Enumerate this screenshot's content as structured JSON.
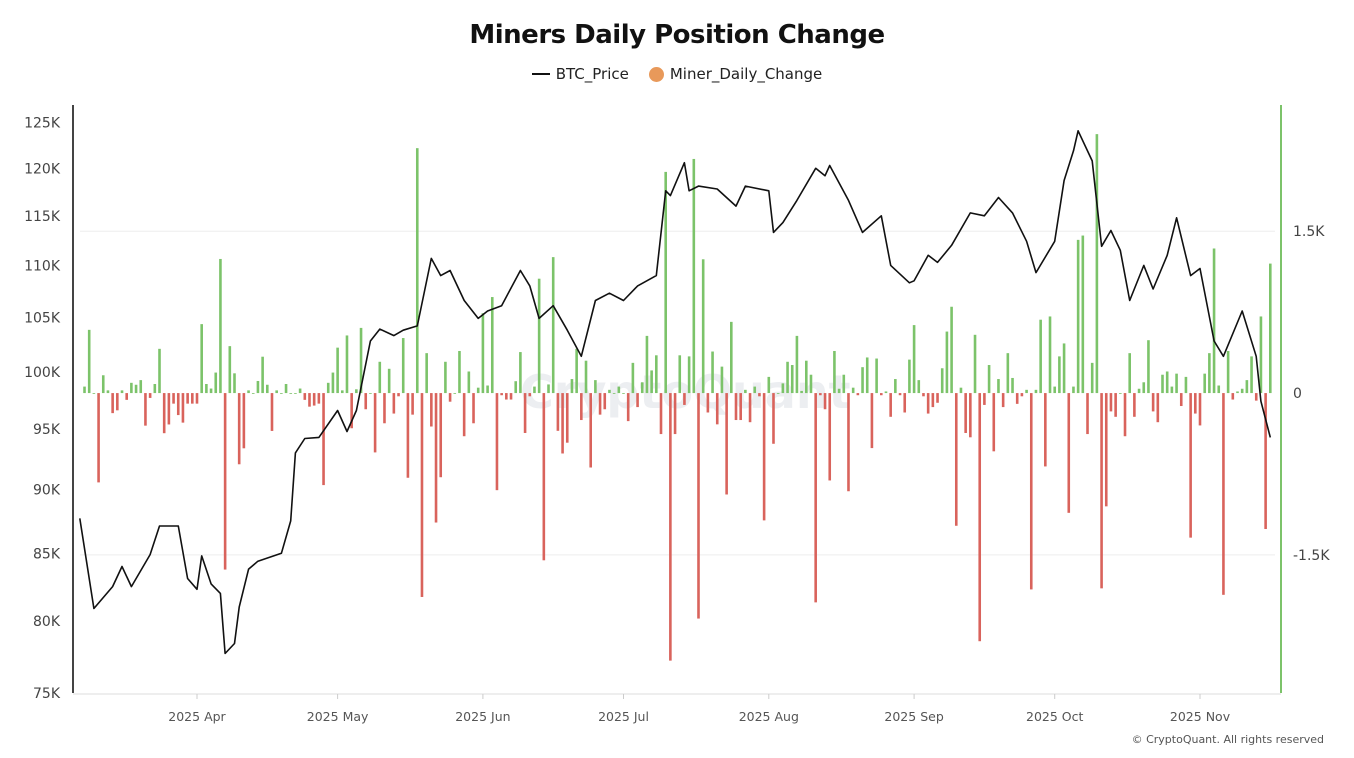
{
  "chart_data": {
    "type": "bar+line",
    "title": "Miners Daily Position Change",
    "legend": {
      "placement": "top-center",
      "entries": [
        {
          "name": "BTC_Price",
          "color": "#111111",
          "marker": "line"
        },
        {
          "name": "Miner_Daily_Change",
          "color": "#e8995a",
          "marker": "circle"
        }
      ]
    },
    "left_axis": {
      "scale": "log",
      "ylim": [
        75000,
        127000
      ],
      "ticks": [
        {
          "value": 125000,
          "label": "125K"
        },
        {
          "value": 120000,
          "label": "120K"
        },
        {
          "value": 115000,
          "label": "115K"
        },
        {
          "value": 110000,
          "label": "110K"
        },
        {
          "value": 105000,
          "label": "105K"
        },
        {
          "value": 100000,
          "label": "100K"
        },
        {
          "value": 95000,
          "label": "95K"
        },
        {
          "value": 90000,
          "label": "90K"
        },
        {
          "value": 85000,
          "label": "85K"
        },
        {
          "value": 80000,
          "label": "80K"
        },
        {
          "value": 75000,
          "label": "75K"
        }
      ]
    },
    "right_axis": {
      "scale": "linear",
      "ylim": [
        -2780,
        2670
      ],
      "ticks": [
        {
          "value": 1500,
          "label": "1.5K"
        },
        {
          "value": 0,
          "label": "0"
        },
        {
          "value": -1500,
          "label": "-1.5K"
        }
      ]
    },
    "x_axis": {
      "type": "date",
      "range": [
        "2025-03-07",
        "2025-11-16"
      ],
      "ticks": [
        {
          "date": "2025-04-01",
          "label": "2025 Apr"
        },
        {
          "date": "2025-05-01",
          "label": "2025 May"
        },
        {
          "date": "2025-06-01",
          "label": "2025 Jun"
        },
        {
          "date": "2025-07-01",
          "label": "2025 Jul"
        },
        {
          "date": "2025-08-01",
          "label": "2025 Aug"
        },
        {
          "date": "2025-09-01",
          "label": "2025 Sep"
        },
        {
          "date": "2025-10-01",
          "label": "2025 Oct"
        },
        {
          "date": "2025-11-01",
          "label": "2025 Nov"
        }
      ]
    },
    "grid": {
      "horizontal_at_right_axis": [
        1500,
        -1500
      ]
    },
    "colors": {
      "positive": "#7cc36a",
      "negative": "#d9635c",
      "price": "#111111"
    },
    "series": [
      {
        "name": "BTC_Price",
        "type": "line",
        "points": [
          [
            "2025-03-07",
            87700
          ],
          [
            "2025-03-10",
            80900
          ],
          [
            "2025-03-14",
            82500
          ],
          [
            "2025-03-16",
            84000
          ],
          [
            "2025-03-18",
            82500
          ],
          [
            "2025-03-22",
            84900
          ],
          [
            "2025-03-24",
            87100
          ],
          [
            "2025-03-28",
            87100
          ],
          [
            "2025-03-30",
            83100
          ],
          [
            "2025-04-01",
            82300
          ],
          [
            "2025-04-02",
            84800
          ],
          [
            "2025-04-04",
            82700
          ],
          [
            "2025-04-06",
            82000
          ],
          [
            "2025-04-07",
            77700
          ],
          [
            "2025-04-09",
            78400
          ],
          [
            "2025-04-10",
            81000
          ],
          [
            "2025-04-12",
            83800
          ],
          [
            "2025-04-14",
            84400
          ],
          [
            "2025-04-19",
            85000
          ],
          [
            "2025-04-21",
            87500
          ],
          [
            "2025-04-22",
            93000
          ],
          [
            "2025-04-24",
            94200
          ],
          [
            "2025-04-27",
            94300
          ],
          [
            "2025-05-01",
            96600
          ],
          [
            "2025-05-03",
            94800
          ],
          [
            "2025-05-05",
            96600
          ],
          [
            "2025-05-08",
            102800
          ],
          [
            "2025-05-10",
            103900
          ],
          [
            "2025-05-13",
            103300
          ],
          [
            "2025-05-15",
            103800
          ],
          [
            "2025-05-18",
            104200
          ],
          [
            "2025-05-21",
            110700
          ],
          [
            "2025-05-23",
            109000
          ],
          [
            "2025-05-25",
            109500
          ],
          [
            "2025-05-28",
            106600
          ],
          [
            "2025-05-31",
            104900
          ],
          [
            "2025-06-02",
            105600
          ],
          [
            "2025-06-05",
            106100
          ],
          [
            "2025-06-09",
            109500
          ],
          [
            "2025-06-11",
            108000
          ],
          [
            "2025-06-13",
            104900
          ],
          [
            "2025-06-16",
            106100
          ],
          [
            "2025-06-19",
            103800
          ],
          [
            "2025-06-22",
            101400
          ],
          [
            "2025-06-25",
            106600
          ],
          [
            "2025-06-28",
            107300
          ],
          [
            "2025-07-01",
            106600
          ],
          [
            "2025-07-04",
            108000
          ],
          [
            "2025-07-08",
            109000
          ],
          [
            "2025-07-10",
            117600
          ],
          [
            "2025-07-11",
            117100
          ],
          [
            "2025-07-14",
            120600
          ],
          [
            "2025-07-15",
            117600
          ],
          [
            "2025-07-17",
            118100
          ],
          [
            "2025-07-21",
            117800
          ],
          [
            "2025-07-25",
            116000
          ],
          [
            "2025-07-27",
            118100
          ],
          [
            "2025-08-01",
            117600
          ],
          [
            "2025-08-02",
            113300
          ],
          [
            "2025-08-04",
            114300
          ],
          [
            "2025-08-07",
            116600
          ],
          [
            "2025-08-11",
            120000
          ],
          [
            "2025-08-13",
            119200
          ],
          [
            "2025-08-14",
            120300
          ],
          [
            "2025-08-18",
            116600
          ],
          [
            "2025-08-21",
            113300
          ],
          [
            "2025-08-25",
            115000
          ],
          [
            "2025-08-27",
            110000
          ],
          [
            "2025-08-31",
            108300
          ],
          [
            "2025-09-01",
            108500
          ],
          [
            "2025-09-04",
            111000
          ],
          [
            "2025-09-06",
            110300
          ],
          [
            "2025-09-09",
            112000
          ],
          [
            "2025-09-13",
            115300
          ],
          [
            "2025-09-16",
            115000
          ],
          [
            "2025-09-19",
            116900
          ],
          [
            "2025-09-22",
            115300
          ],
          [
            "2025-09-25",
            112400
          ],
          [
            "2025-09-27",
            109300
          ],
          [
            "2025-10-01",
            112400
          ],
          [
            "2025-10-03",
            118700
          ],
          [
            "2025-10-05",
            121900
          ],
          [
            "2025-10-06",
            124100
          ],
          [
            "2025-10-09",
            120800
          ],
          [
            "2025-10-11",
            111900
          ],
          [
            "2025-10-13",
            113500
          ],
          [
            "2025-10-15",
            111500
          ],
          [
            "2025-10-17",
            106600
          ],
          [
            "2025-10-20",
            110000
          ],
          [
            "2025-10-22",
            107700
          ],
          [
            "2025-10-25",
            111000
          ],
          [
            "2025-10-27",
            114800
          ],
          [
            "2025-10-30",
            109000
          ],
          [
            "2025-11-01",
            109700
          ],
          [
            "2025-11-04",
            102800
          ],
          [
            "2025-11-06",
            101400
          ],
          [
            "2025-11-10",
            105600
          ],
          [
            "2025-11-13",
            101400
          ],
          [
            "2025-11-14",
            97400
          ],
          [
            "2025-11-16",
            94300
          ]
        ]
      },
      {
        "name": "Miner_Daily_Change",
        "type": "bar",
        "start": "2025-03-08",
        "values": [
          60,
          586,
          0,
          -828,
          165,
          25,
          -186,
          -160,
          25,
          -63,
          95,
          77,
          120,
          -302,
          -45,
          84,
          410,
          -372,
          -291,
          -98,
          -204,
          -274,
          -98,
          -98,
          -98,
          639,
          84,
          42,
          190,
          1243,
          -1636,
          435,
          183,
          -660,
          -512,
          25,
          0,
          112,
          337,
          77,
          -351,
          25,
          0,
          84,
          0,
          0,
          42,
          -63,
          -126,
          -116,
          -98,
          -853,
          95,
          190,
          421,
          25,
          534,
          -326,
          35,
          604,
          -150,
          0,
          -550,
          290,
          -280,
          225,
          -190,
          -30,
          510,
          -785,
          -200,
          2270,
          -1890,
          370,
          -310,
          -1200,
          -780,
          290,
          -80,
          0,
          390,
          -400,
          200,
          -280,
          50,
          740,
          70,
          890,
          -900,
          -20,
          -60,
          -60,
          110,
          380,
          -370,
          -30,
          60,
          1060,
          -1550,
          80,
          1260,
          -350,
          -560,
          -460,
          130,
          410,
          -250,
          300,
          -690,
          120,
          -200,
          -150,
          30,
          0,
          60,
          0,
          -260,
          280,
          -130,
          100,
          530,
          210,
          350,
          -380,
          2050,
          -2480,
          -380,
          350,
          -110,
          340,
          2170,
          -2090,
          1240,
          -180,
          385,
          -290,
          245,
          -940,
          660,
          -250,
          -250,
          30,
          -270,
          60,
          -30,
          -1180,
          150,
          -470,
          0,
          90,
          290,
          260,
          530,
          20,
          300,
          170,
          -1940,
          -20,
          -150,
          -810,
          390,
          40,
          170,
          -910,
          50,
          -20,
          240,
          330,
          -510,
          320,
          -20,
          15,
          -220,
          130,
          -20,
          -180,
          310,
          630,
          120,
          -30,
          -190,
          -130,
          -90,
          230,
          570,
          800,
          -1230,
          50,
          -370,
          -410,
          540,
          -2300,
          -110,
          260,
          -540,
          130,
          -130,
          370,
          140,
          -100,
          -30,
          30,
          -1820,
          30,
          680,
          -680,
          710,
          60,
          340,
          460,
          -1110,
          60,
          1420,
          1460,
          -380,
          280,
          2400,
          -1810,
          -1050,
          -170,
          -220,
          0,
          -400,
          370,
          -220,
          40,
          100,
          490,
          -170,
          -270,
          170,
          200,
          60,
          180,
          -120,
          150,
          -1340,
          -190,
          -300,
          180,
          370,
          1340,
          70,
          -1870,
          390,
          -60,
          15,
          40,
          120,
          340,
          -70,
          710,
          -1260,
          1200
        ]
      }
    ]
  },
  "watermark": "CryptoQuant",
  "copyright": "© CryptoQuant. All rights reserved"
}
